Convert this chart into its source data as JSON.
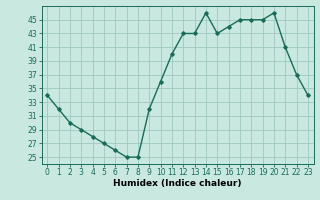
{
  "x": [
    0,
    1,
    2,
    3,
    4,
    5,
    6,
    7,
    8,
    9,
    10,
    11,
    12,
    13,
    14,
    15,
    16,
    17,
    18,
    19,
    20,
    21,
    22,
    23
  ],
  "y": [
    34,
    32,
    30,
    29,
    28,
    27,
    26,
    25,
    25,
    32,
    36,
    40,
    43,
    43,
    46,
    43,
    44,
    45,
    45,
    45,
    46,
    41,
    37,
    34
  ],
  "line_color": "#1a6b5a",
  "marker": "D",
  "marker_size": 1.8,
  "linewidth": 1.0,
  "bg_color": "#c8e8e0",
  "grid_color": "#a0c8c0",
  "xlabel": "Humidex (Indice chaleur)",
  "ylabel_ticks": [
    25,
    27,
    29,
    31,
    33,
    35,
    37,
    39,
    41,
    43,
    45
  ],
  "ylim": [
    24.0,
    47.0
  ],
  "xlim": [
    -0.5,
    23.5
  ],
  "xlabel_fontsize": 6.5,
  "tick_fontsize": 5.5
}
